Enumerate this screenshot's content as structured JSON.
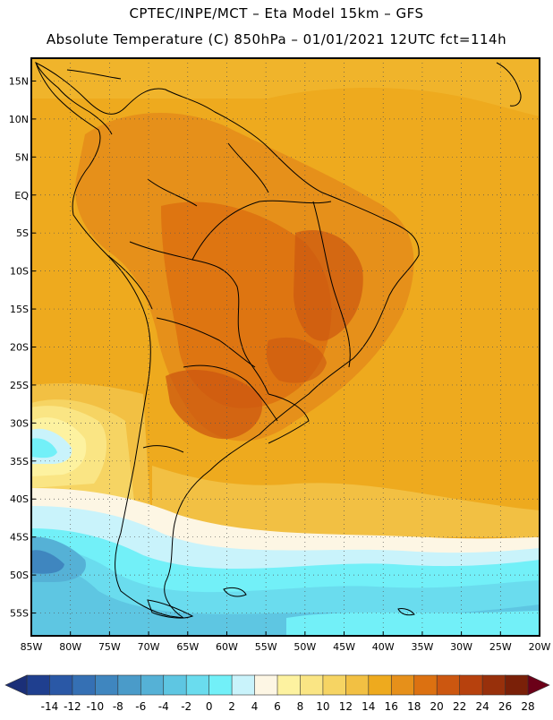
{
  "header": {
    "line1": "CPTEC/INPE/MCT –  Eta Model 15km – GFS",
    "line2": "Absolute Temperature (C) 850hPa – 01/01/2021 12UTC fct=114h"
  },
  "map": {
    "lat_labels": [
      "15N",
      "10N",
      "5N",
      "EQ",
      "5S",
      "10S",
      "15S",
      "20S",
      "25S",
      "30S",
      "35S",
      "40S",
      "45S",
      "50S",
      "55S"
    ],
    "lon_labels": [
      "85W",
      "80W",
      "75W",
      "70W",
      "65W",
      "60W",
      "55W",
      "50W",
      "45W",
      "40W",
      "35W",
      "30W",
      "25W",
      "20W"
    ]
  },
  "colorbar": {
    "labels": [
      "-14",
      "-12",
      "-10",
      "-8",
      "-6",
      "-4",
      "-2",
      "0",
      "2",
      "4",
      "6",
      "8",
      "10",
      "12",
      "14",
      "16",
      "18",
      "20",
      "22",
      "24",
      "26",
      "28"
    ],
    "colors": [
      "#1f3f8f",
      "#2a58a6",
      "#3570b4",
      "#3f86bf",
      "#4a9bc9",
      "#55b1d6",
      "#5ec6e2",
      "#6adcee",
      "#72f0f8",
      "#c9f3fb",
      "#fdf6e4",
      "#fdf2a0",
      "#fae584",
      "#f6d463",
      "#f2c043",
      "#eeaa1e",
      "#e6901a",
      "#dc7111",
      "#cc5710",
      "#b7410d",
      "#98300b",
      "#7a2008"
    ],
    "low_arrow_color": "#1b2f78",
    "high_arrow_color": "#6b0018"
  }
}
